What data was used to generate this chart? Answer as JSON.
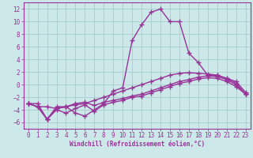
{
  "xlabel": "Windchill (Refroidissement éolien,°C)",
  "background_color": "#cce8e8",
  "grid_color": "#aacccc",
  "line_color": "#993399",
  "xlim": [
    -0.5,
    23.5
  ],
  "ylim": [
    -7,
    13
  ],
  "xticks": [
    0,
    1,
    2,
    3,
    4,
    5,
    6,
    7,
    8,
    9,
    10,
    11,
    12,
    13,
    14,
    15,
    16,
    17,
    18,
    19,
    20,
    21,
    22,
    23
  ],
  "yticks": [
    -6,
    -4,
    -2,
    0,
    2,
    4,
    6,
    8,
    10,
    12
  ],
  "line_spike_x": [
    0,
    1,
    2,
    3,
    4,
    5,
    6,
    7,
    8,
    9,
    10,
    11,
    12,
    13,
    14,
    15,
    16,
    17,
    18,
    19,
    20,
    21,
    22,
    23
  ],
  "line_spike_y": [
    -3.0,
    -3.0,
    -5.5,
    -3.5,
    -3.5,
    -4.5,
    -5.0,
    -4.0,
    -3.0,
    -1.0,
    -0.5,
    7.0,
    9.5,
    11.5,
    12.0,
    10.0,
    10.0,
    5.0,
    3.5,
    1.5,
    1.5,
    1.0,
    0.2,
    -1.5
  ],
  "line_upper_x": [
    0,
    1,
    2,
    3,
    4,
    5,
    6,
    7,
    8,
    9,
    10,
    11,
    12,
    13,
    14,
    15,
    16,
    17,
    18,
    19,
    20,
    21,
    22,
    23
  ],
  "line_upper_y": [
    -3.0,
    -3.5,
    -3.5,
    -3.8,
    -3.5,
    -3.2,
    -3.0,
    -2.5,
    -2.0,
    -1.5,
    -1.0,
    -0.5,
    0.0,
    0.5,
    1.0,
    1.5,
    1.8,
    1.9,
    1.8,
    1.7,
    1.5,
    1.0,
    0.5,
    -1.2
  ],
  "line_lower1_x": [
    0,
    1,
    2,
    3,
    4,
    5,
    6,
    7,
    8,
    9,
    10,
    11,
    12,
    13,
    14,
    15,
    16,
    17,
    18,
    19,
    20,
    21,
    22,
    23
  ],
  "line_lower1_y": [
    -3.0,
    -3.5,
    -5.5,
    -3.8,
    -3.5,
    -3.0,
    -2.8,
    -3.3,
    -2.8,
    -2.5,
    -2.2,
    -1.8,
    -1.5,
    -1.0,
    -0.5,
    0.0,
    0.5,
    0.8,
    1.2,
    1.4,
    1.3,
    0.8,
    0.0,
    -1.5
  ],
  "line_lower2_x": [
    0,
    1,
    2,
    3,
    4,
    5,
    6,
    7,
    8,
    9,
    10,
    11,
    12,
    13,
    14,
    15,
    16,
    17,
    18,
    19,
    20,
    21,
    22,
    23
  ],
  "line_lower2_y": [
    -3.0,
    -3.5,
    -5.5,
    -4.0,
    -4.5,
    -3.8,
    -3.2,
    -4.2,
    -3.2,
    -2.8,
    -2.5,
    -2.0,
    -1.8,
    -1.3,
    -0.8,
    -0.3,
    0.2,
    0.5,
    0.9,
    1.1,
    1.0,
    0.5,
    -0.3,
    -1.5
  ],
  "marker": "+",
  "markersize": 4,
  "linewidth": 1.0,
  "tick_fontsize": 5.5,
  "xlabel_fontsize": 5.5,
  "font_family": "monospace"
}
